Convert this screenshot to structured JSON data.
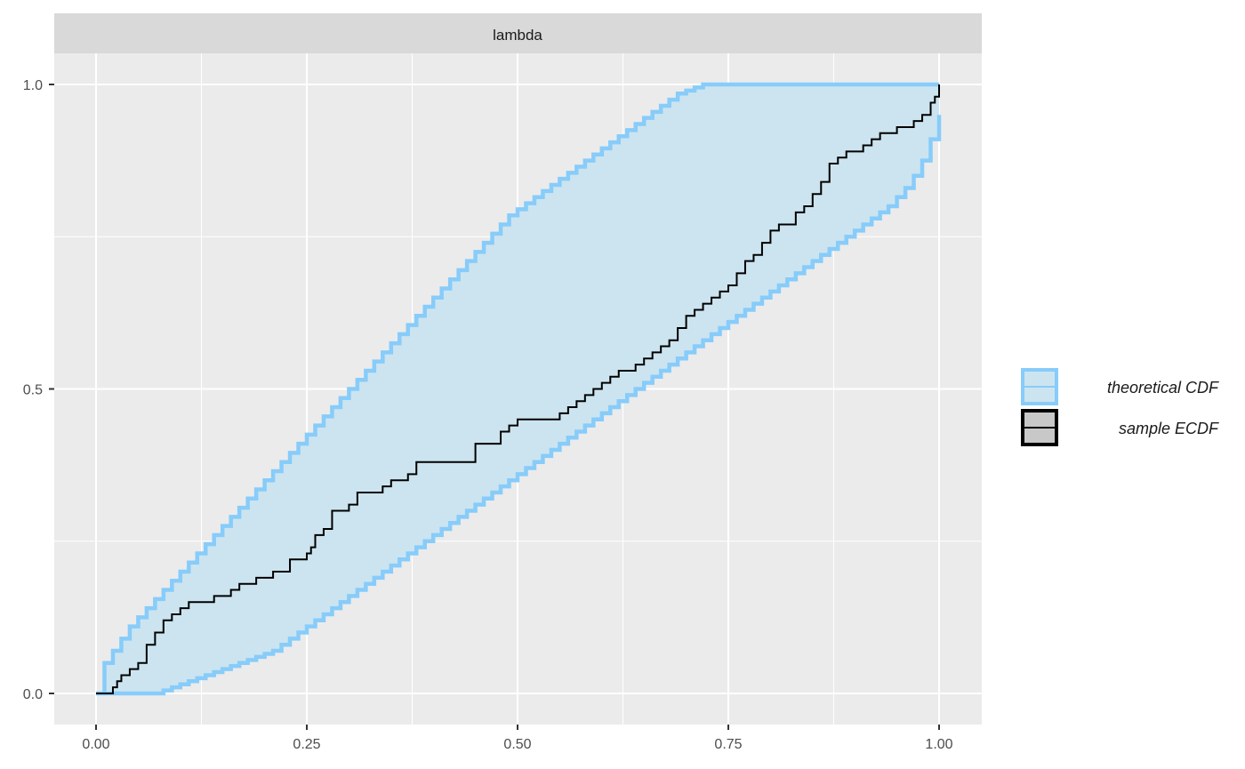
{
  "chart_data": {
    "type": "line",
    "facet_label": "lambda",
    "xlim": [
      0,
      1
    ],
    "ylim": [
      0,
      1
    ],
    "x_ticks": [
      {
        "value": 0.0,
        "label": "0.00"
      },
      {
        "value": 0.25,
        "label": "0.25"
      },
      {
        "value": 0.5,
        "label": "0.50"
      },
      {
        "value": 0.75,
        "label": "0.75"
      },
      {
        "value": 1.0,
        "label": "1.00"
      }
    ],
    "y_ticks": [
      {
        "value": 0.0,
        "label": "0.0"
      },
      {
        "value": 0.5,
        "label": "0.5"
      },
      {
        "value": 1.0,
        "label": "1.0"
      }
    ],
    "grid": true,
    "legend_position": "right",
    "legend": [
      {
        "key": "theoretical",
        "label": "theoretical CDF"
      },
      {
        "key": "sample",
        "label": "sample ECDF"
      }
    ],
    "colors": {
      "band_fill": "#cce4ef",
      "band_line": "#87ccfa",
      "ecdf_line": "#000000",
      "panel_bg": "#ebebeb",
      "strip_bg": "#d9d9d9",
      "grid": "#ffffff"
    },
    "band": {
      "x": [
        0,
        0.01,
        0.02,
        0.03,
        0.04,
        0.05,
        0.06,
        0.07,
        0.08,
        0.09,
        0.1,
        0.11,
        0.12,
        0.13,
        0.14,
        0.15,
        0.16,
        0.17,
        0.18,
        0.19,
        0.2,
        0.21,
        0.22,
        0.23,
        0.24,
        0.25,
        0.26,
        0.27,
        0.28,
        0.29,
        0.3,
        0.31,
        0.32,
        0.33,
        0.34,
        0.35,
        0.36,
        0.37,
        0.38,
        0.39,
        0.4,
        0.41,
        0.42,
        0.43,
        0.44,
        0.45,
        0.46,
        0.47,
        0.48,
        0.49,
        0.5,
        0.51,
        0.52,
        0.53,
        0.54,
        0.55,
        0.56,
        0.57,
        0.58,
        0.59,
        0.6,
        0.61,
        0.62,
        0.63,
        0.64,
        0.65,
        0.66,
        0.67,
        0.68,
        0.69,
        0.7,
        0.71,
        0.72,
        0.73,
        0.74,
        0.75,
        0.76,
        0.77,
        0.78,
        0.79,
        0.8,
        0.81,
        0.82,
        0.83,
        0.84,
        0.85,
        0.86,
        0.87,
        0.88,
        0.89,
        0.9,
        0.91,
        0.92,
        0.93,
        0.94,
        0.95,
        0.96,
        0.97,
        0.98,
        0.99,
        1.0
      ],
      "upper": [
        0.0,
        0.05,
        0.07,
        0.09,
        0.11,
        0.125,
        0.14,
        0.155,
        0.17,
        0.185,
        0.2,
        0.215,
        0.23,
        0.245,
        0.26,
        0.275,
        0.29,
        0.305,
        0.32,
        0.335,
        0.35,
        0.365,
        0.38,
        0.395,
        0.41,
        0.425,
        0.44,
        0.455,
        0.47,
        0.485,
        0.5,
        0.515,
        0.53,
        0.545,
        0.56,
        0.575,
        0.59,
        0.605,
        0.62,
        0.635,
        0.65,
        0.665,
        0.68,
        0.695,
        0.71,
        0.725,
        0.74,
        0.755,
        0.77,
        0.785,
        0.795,
        0.805,
        0.815,
        0.825,
        0.835,
        0.845,
        0.855,
        0.865,
        0.875,
        0.885,
        0.895,
        0.905,
        0.915,
        0.925,
        0.935,
        0.945,
        0.955,
        0.965,
        0.975,
        0.985,
        0.99,
        0.995,
        1.0,
        1.0,
        1.0,
        1.0,
        1.0,
        1.0,
        1.0,
        1.0,
        1.0,
        1.0,
        1.0,
        1.0,
        1.0,
        1.0,
        1.0,
        1.0,
        1.0,
        1.0,
        1.0,
        1.0,
        1.0,
        1.0,
        1.0,
        1.0,
        1.0,
        1.0,
        1.0,
        1.0,
        1.0
      ],
      "lower": [
        0.0,
        0.0,
        0.0,
        0.0,
        0.0,
        0.0,
        0.0,
        0.0,
        0.005,
        0.01,
        0.015,
        0.02,
        0.025,
        0.03,
        0.035,
        0.04,
        0.045,
        0.05,
        0.055,
        0.06,
        0.065,
        0.07,
        0.08,
        0.09,
        0.1,
        0.11,
        0.12,
        0.13,
        0.14,
        0.15,
        0.16,
        0.17,
        0.18,
        0.19,
        0.2,
        0.21,
        0.22,
        0.23,
        0.24,
        0.25,
        0.26,
        0.27,
        0.28,
        0.29,
        0.3,
        0.31,
        0.32,
        0.33,
        0.34,
        0.35,
        0.36,
        0.37,
        0.38,
        0.39,
        0.4,
        0.41,
        0.42,
        0.43,
        0.44,
        0.45,
        0.46,
        0.47,
        0.48,
        0.49,
        0.5,
        0.51,
        0.52,
        0.53,
        0.54,
        0.55,
        0.56,
        0.57,
        0.58,
        0.59,
        0.6,
        0.61,
        0.62,
        0.63,
        0.64,
        0.65,
        0.66,
        0.67,
        0.68,
        0.69,
        0.7,
        0.71,
        0.72,
        0.73,
        0.74,
        0.75,
        0.76,
        0.77,
        0.78,
        0.79,
        0.8,
        0.815,
        0.83,
        0.85,
        0.875,
        0.91,
        0.95
      ]
    },
    "ecdf": {
      "x": [
        0,
        0.02,
        0.025,
        0.03,
        0.04,
        0.05,
        0.06,
        0.07,
        0.08,
        0.09,
        0.1,
        0.11,
        0.14,
        0.16,
        0.17,
        0.19,
        0.21,
        0.23,
        0.25,
        0.255,
        0.26,
        0.27,
        0.28,
        0.3,
        0.31,
        0.33,
        0.34,
        0.35,
        0.37,
        0.38,
        0.42,
        0.45,
        0.48,
        0.49,
        0.5,
        0.55,
        0.56,
        0.57,
        0.58,
        0.59,
        0.6,
        0.61,
        0.62,
        0.63,
        0.64,
        0.65,
        0.66,
        0.67,
        0.68,
        0.69,
        0.7,
        0.71,
        0.72,
        0.73,
        0.74,
        0.75,
        0.76,
        0.77,
        0.78,
        0.79,
        0.8,
        0.81,
        0.82,
        0.83,
        0.84,
        0.85,
        0.86,
        0.87,
        0.88,
        0.89,
        0.9,
        0.91,
        0.92,
        0.93,
        0.94,
        0.95,
        0.96,
        0.97,
        0.98,
        0.99,
        0.995,
        1.0
      ],
      "y": [
        0.0,
        0.01,
        0.02,
        0.03,
        0.04,
        0.05,
        0.08,
        0.1,
        0.12,
        0.13,
        0.14,
        0.15,
        0.16,
        0.17,
        0.18,
        0.19,
        0.2,
        0.22,
        0.23,
        0.24,
        0.26,
        0.27,
        0.3,
        0.31,
        0.33,
        0.33,
        0.34,
        0.35,
        0.36,
        0.38,
        0.38,
        0.41,
        0.43,
        0.44,
        0.45,
        0.46,
        0.47,
        0.48,
        0.49,
        0.5,
        0.51,
        0.52,
        0.53,
        0.53,
        0.54,
        0.55,
        0.56,
        0.57,
        0.58,
        0.6,
        0.62,
        0.63,
        0.64,
        0.65,
        0.66,
        0.67,
        0.69,
        0.71,
        0.72,
        0.74,
        0.76,
        0.77,
        0.77,
        0.79,
        0.8,
        0.82,
        0.84,
        0.87,
        0.88,
        0.89,
        0.89,
        0.9,
        0.91,
        0.92,
        0.92,
        0.93,
        0.93,
        0.94,
        0.95,
        0.97,
        0.98,
        1.0
      ]
    }
  }
}
